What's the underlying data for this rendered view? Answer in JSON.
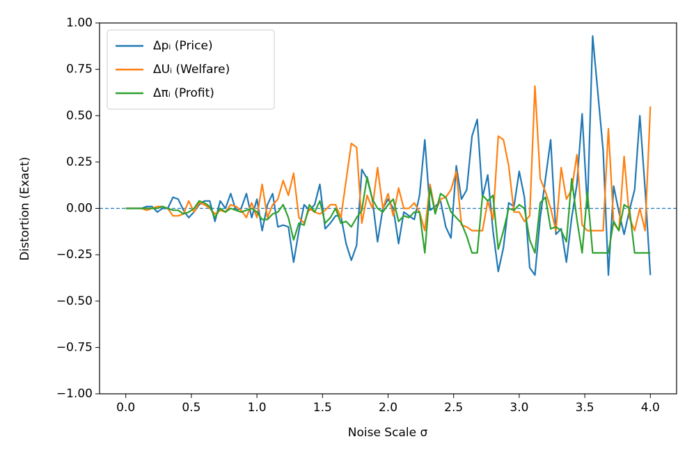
{
  "chart_data": {
    "type": "line",
    "xlabel": "Noise Scale σ",
    "ylabel": "Distortion (Exact)",
    "x": [
      0,
      0.04,
      0.08,
      0.12,
      0.16,
      0.2,
      0.24,
      0.28,
      0.32,
      0.36,
      0.4,
      0.44,
      0.48,
      0.52,
      0.56,
      0.6,
      0.64,
      0.68,
      0.72,
      0.76,
      0.8,
      0.84,
      0.88,
      0.92,
      0.96,
      1,
      1.04,
      1.08,
      1.12,
      1.16,
      1.2,
      1.24,
      1.28,
      1.32,
      1.36,
      1.4,
      1.44,
      1.48,
      1.52,
      1.56,
      1.6,
      1.64,
      1.68,
      1.72,
      1.76,
      1.8,
      1.84,
      1.88,
      1.92,
      1.96,
      2,
      2.04,
      2.08,
      2.12,
      2.16,
      2.2,
      2.24,
      2.28,
      2.32,
      2.36,
      2.4,
      2.44,
      2.48,
      2.52,
      2.56,
      2.6,
      2.64,
      2.68,
      2.72,
      2.76,
      2.8,
      2.84,
      2.88,
      2.92,
      2.96,
      3,
      3.04,
      3.08,
      3.12,
      3.16,
      3.2,
      3.24,
      3.28,
      3.32,
      3.36,
      3.4,
      3.44,
      3.48,
      3.52,
      3.56,
      3.6,
      3.64,
      3.68,
      3.72,
      3.76,
      3.8,
      3.84,
      3.88,
      3.92,
      3.96,
      4
    ],
    "series": [
      {
        "name": "Δpᵢ (Price)",
        "color": "#1f77b4",
        "values": [
          0,
          0,
          0,
          0,
          0.01,
          0.01,
          -0.02,
          0,
          0,
          0.06,
          0.05,
          -0.01,
          -0.05,
          -0.02,
          0.02,
          0.04,
          0.04,
          -0.07,
          0.04,
          0,
          0.08,
          -0.01,
          0,
          0.08,
          -0.05,
          0.05,
          -0.12,
          0.02,
          0.08,
          -0.1,
          -0.09,
          -0.1,
          -0.29,
          -0.12,
          0.02,
          -0.01,
          0.02,
          0.13,
          -0.11,
          -0.08,
          -0.04,
          -0.04,
          -0.19,
          -0.28,
          -0.2,
          0.21,
          0.16,
          0.05,
          -0.18,
          0,
          0.05,
          0,
          -0.19,
          -0.02,
          -0.04,
          -0.06,
          0.07,
          0.37,
          -0.01,
          0.01,
          0.04,
          -0.1,
          -0.16,
          0.23,
          0.05,
          0.1,
          0.39,
          0.48,
          0.06,
          0.18,
          -0.12,
          -0.34,
          -0.21,
          0.03,
          0.01,
          0.2,
          0.06,
          -0.32,
          -0.36,
          -0.05,
          0.16,
          0.37,
          -0.14,
          -0.11,
          -0.29,
          -0.05,
          0.13,
          0.51,
          0,
          0.93,
          0.62,
          0.31,
          -0.36,
          0.12,
          -0.02,
          -0.14,
          -0.01,
          0.1,
          0.5,
          0.1,
          -0.36
        ]
      },
      {
        "name": "ΔUᵢ (Welfare)",
        "color": "#ff7f0e",
        "values": [
          0,
          0,
          0,
          0,
          -0.01,
          0,
          0.01,
          0.01,
          0,
          -0.04,
          -0.04,
          -0.03,
          0.04,
          -0.02,
          0.03,
          0.02,
          0,
          -0.03,
          -0.01,
          -0.02,
          0.02,
          0.01,
          -0.01,
          -0.05,
          0.03,
          -0.05,
          0.13,
          -0.05,
          0.02,
          0.05,
          0.15,
          0.07,
          0.19,
          -0.05,
          -0.08,
          0,
          -0.02,
          -0.03,
          -0.01,
          0.02,
          0.02,
          -0.05,
          0.15,
          0.35,
          0.33,
          -0.08,
          0.07,
          0,
          0.22,
          0,
          0.08,
          -0.04,
          0.11,
          0,
          0,
          0.03,
          -0.02,
          -0.12,
          0.13,
          -0.02,
          0.05,
          0.06,
          0.1,
          0.2,
          -0.09,
          -0.1,
          -0.12,
          -0.12,
          -0.12,
          0.04,
          -0.06,
          0.39,
          0.37,
          0.23,
          -0.02,
          -0.02,
          -0.07,
          -0.04,
          0.66,
          0.16,
          0.09,
          0,
          -0.12,
          0.22,
          0.05,
          0.1,
          0.29,
          -0.09,
          -0.12,
          -0.12,
          -0.12,
          -0.12,
          0.43,
          -0.08,
          -0.12,
          0.28,
          -0.05,
          -0.12,
          0,
          -0.12,
          0.55
        ]
      },
      {
        "name": "Δπᵢ (Profit)",
        "color": "#2ca02c",
        "values": [
          0,
          0,
          0,
          0,
          0,
          0,
          0,
          0.01,
          0,
          -0.01,
          -0.01,
          -0.03,
          -0.02,
          0,
          0.04,
          0.03,
          0.01,
          -0.05,
          0,
          -0.02,
          0,
          -0.01,
          -0.02,
          -0.01,
          0,
          -0.02,
          -0.06,
          -0.06,
          -0.03,
          -0.02,
          0.02,
          -0.05,
          -0.17,
          -0.08,
          -0.09,
          0.02,
          -0.02,
          0.04,
          -0.08,
          -0.05,
          0,
          -0.08,
          -0.07,
          -0.1,
          -0.05,
          -0.01,
          0.17,
          0.05,
          0,
          -0.02,
          0.02,
          0.05,
          -0.07,
          -0.04,
          -0.05,
          -0.02,
          -0.02,
          -0.24,
          0.11,
          -0.03,
          0.08,
          0.06,
          -0.02,
          -0.05,
          -0.08,
          -0.15,
          -0.24,
          -0.24,
          0.07,
          0.04,
          0.07,
          -0.22,
          -0.12,
          0,
          -0.01,
          0.02,
          0,
          -0.17,
          -0.24,
          0.03,
          0.06,
          -0.11,
          -0.1,
          -0.12,
          -0.18,
          0.16,
          -0.06,
          -0.24,
          0.09,
          -0.24,
          -0.24,
          -0.24,
          -0.24,
          -0.07,
          -0.12,
          0.02,
          0,
          -0.24,
          -0.24,
          -0.24,
          -0.24
        ]
      }
    ],
    "hline": {
      "value": 0,
      "color": "#1f77b4"
    },
    "xlim": [
      -0.2,
      4.2
    ],
    "ylim": [
      -1,
      1
    ],
    "xticks": [
      {
        "value": 0,
        "label": "0.0"
      },
      {
        "value": 0.5,
        "label": "0.5"
      },
      {
        "value": 1,
        "label": "1.0"
      },
      {
        "value": 1.5,
        "label": "1.5"
      },
      {
        "value": 2,
        "label": "2.0"
      },
      {
        "value": 2.5,
        "label": "2.5"
      },
      {
        "value": 3,
        "label": "3.0"
      },
      {
        "value": 3.5,
        "label": "3.5"
      },
      {
        "value": 4,
        "label": "4.0"
      }
    ],
    "yticks": [
      {
        "value": -1,
        "label": "−1.00"
      },
      {
        "value": -0.75,
        "label": "−0.75"
      },
      {
        "value": -0.5,
        "label": "−0.50"
      },
      {
        "value": -0.25,
        "label": "−0.25"
      },
      {
        "value": 0,
        "label": "0.00"
      },
      {
        "value": 0.25,
        "label": "0.25"
      },
      {
        "value": 0.5,
        "label": "0.50"
      },
      {
        "value": 0.75,
        "label": "0.75"
      },
      {
        "value": 1,
        "label": "1.00"
      }
    ],
    "legend": "upper left"
  }
}
